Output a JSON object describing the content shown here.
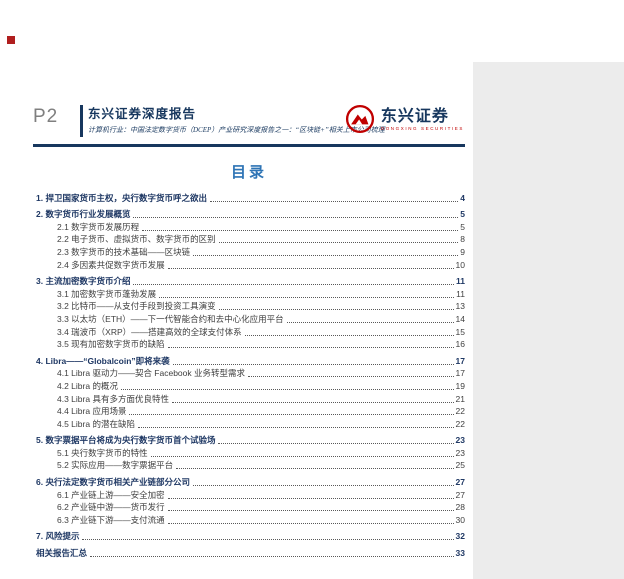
{
  "page": {
    "label": "P2"
  },
  "header": {
    "report_type": "东兴证券深度报告",
    "subtitle": "计算机行业：中国法定数字货币（DCEP）产业研究深度报告之一：“区块链+”相关上市公司梳理"
  },
  "logo": {
    "name_cn": "东兴证券",
    "name_en": "DONGXING SECURITIES",
    "brand_red": "#c00000",
    "brand_navy": "#17375e"
  },
  "toc": {
    "heading": "目录",
    "entries": [
      {
        "level": 1,
        "label": "1. 捍卫国家货币主权，央行数字货币呼之欲出",
        "page": "4"
      },
      {
        "level": 1,
        "label": "2. 数字货币行业发展概览",
        "page": "5"
      },
      {
        "level": 2,
        "label": "2.1 数字货币发展历程",
        "page": "5"
      },
      {
        "level": 2,
        "label": "2.2 电子货币、虚拟货币、数字货币的区别",
        "page": "8"
      },
      {
        "level": 2,
        "label": "2.3 数字货币的技术基础——区块链",
        "page": "9"
      },
      {
        "level": 2,
        "label": "2.4 多因素共促数字货币发展",
        "page": "10"
      },
      {
        "level": 1,
        "label": "3. 主流加密数字货币介绍",
        "page": "11"
      },
      {
        "level": 2,
        "label": "3.1 加密数字货币蓬勃发展",
        "page": "11"
      },
      {
        "level": 2,
        "label": "3.2 比特币——从支付手段到投资工具演变",
        "page": "13"
      },
      {
        "level": 2,
        "label": "3.3 以太坊（ETH）——下一代智能合约和去中心化应用平台",
        "page": "14"
      },
      {
        "level": 2,
        "label": "3.4 瑞波币（XRP）——搭建高效的全球支付体系",
        "page": "15"
      },
      {
        "level": 2,
        "label": "3.5 现有加密数字货币的缺陷",
        "page": "16"
      },
      {
        "level": 1,
        "label": "4. Libra——“Globalcoin”即将来袭",
        "page": "17"
      },
      {
        "level": 2,
        "label": "4.1 Libra 驱动力——契合 Facebook 业务转型需求",
        "page": "17"
      },
      {
        "level": 2,
        "label": "4.2 Libra 的概况",
        "page": "19"
      },
      {
        "level": 2,
        "label": "4.3 Libra 具有多方面优良特性",
        "page": "21"
      },
      {
        "level": 2,
        "label": "4.4 Libra 应用场景",
        "page": "22"
      },
      {
        "level": 2,
        "label": "4.5 Libra 的潜在缺陷",
        "page": "22"
      },
      {
        "level": 1,
        "label": "5. 数字票据平台将成为央行数字货币首个试验场",
        "page": "23"
      },
      {
        "level": 2,
        "label": "5.1 央行数字货币的特性",
        "page": "23"
      },
      {
        "level": 2,
        "label": "5.2 实际应用——数字票据平台",
        "page": "25"
      },
      {
        "level": 1,
        "label": "6. 央行法定数字货币相关产业链部分公司",
        "page": "27"
      },
      {
        "level": 2,
        "label": "6.1 产业链上游——安全加密",
        "page": "27"
      },
      {
        "level": 2,
        "label": "6.2 产业链中游——货币发行",
        "page": "28"
      },
      {
        "level": 2,
        "label": "6.3 产业链下游——支付流通",
        "page": "30"
      },
      {
        "level": 1,
        "label": "7. 风险提示",
        "page": "32"
      },
      {
        "level": 1,
        "label": "相关报告汇总",
        "page": "33"
      }
    ]
  }
}
